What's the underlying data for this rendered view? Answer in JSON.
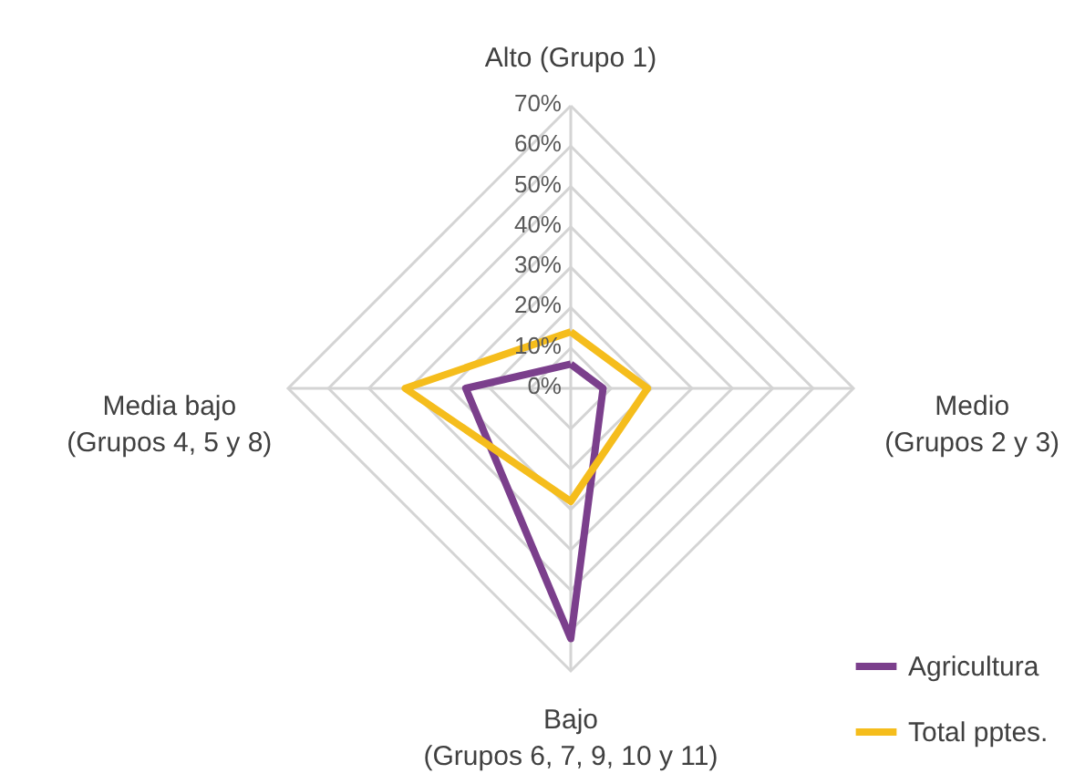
{
  "chart_data": {
    "type": "radar",
    "categories": [
      "Alto  (Grupo 1)",
      "Medio\n(Grupos 2 y 3)",
      "Bajo\n(Grupos 6, 7, 9, 10 y 11)",
      "Media bajo\n(Grupos 4, 5 y 8)"
    ],
    "series": [
      {
        "name": "Agricultura",
        "color": "#7b3f8c",
        "values": [
          6,
          8,
          62,
          26
        ]
      },
      {
        "name": "Total pptes.",
        "color": "#f5bd1c",
        "values": [
          14,
          19,
          28,
          41
        ]
      }
    ],
    "ylim": [
      0,
      70
    ],
    "yticks": [
      {
        "value": 0,
        "label": "0%"
      },
      {
        "value": 10,
        "label": "10%"
      },
      {
        "value": 20,
        "label": "20%"
      },
      {
        "value": 30,
        "label": "30%"
      },
      {
        "value": 40,
        "label": "40%"
      },
      {
        "value": 50,
        "label": "50%"
      },
      {
        "value": 60,
        "label": "60%"
      },
      {
        "value": 70,
        "label": "70%"
      }
    ],
    "grid": true,
    "legend": "bottom right"
  }
}
